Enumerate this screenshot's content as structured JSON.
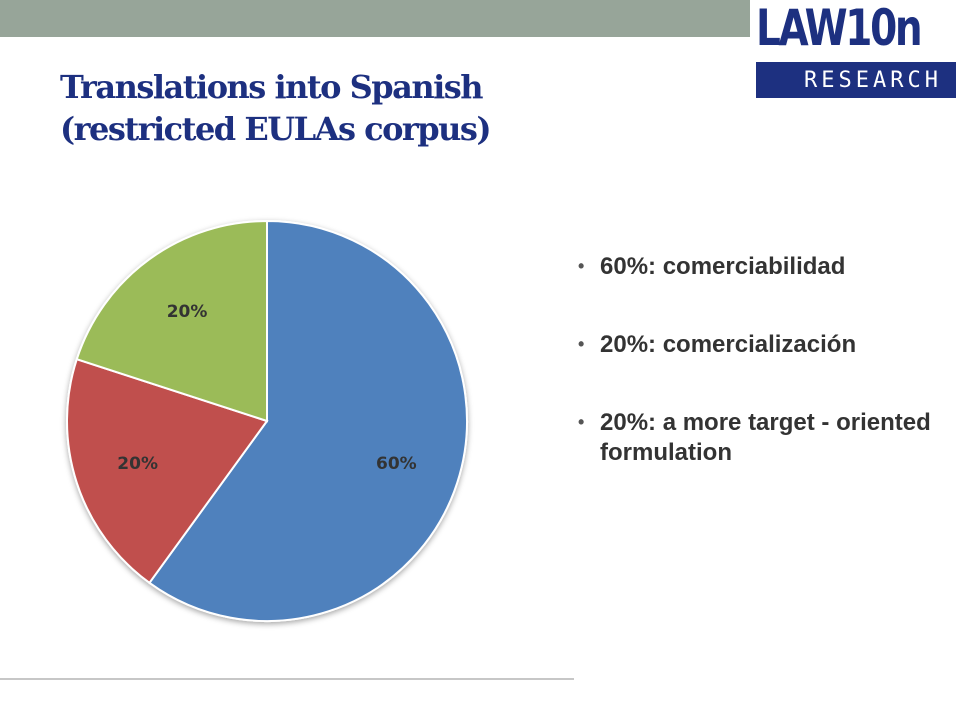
{
  "slide": {
    "title_line1": "Translations into Spanish",
    "title_line2": "(restricted EULAs corpus)"
  },
  "logo": {
    "word": "LAW10n",
    "sub": "RESEARCH",
    "color": "#1d3080"
  },
  "top_bar_color": "#97a599",
  "chart_data": {
    "type": "pie",
    "start_angle": "12 o'clock, clockwise",
    "slices": [
      {
        "label": "60%",
        "value": 60,
        "color": "#4f81bd"
      },
      {
        "label": "20%",
        "value": 20,
        "color": "#c0504d"
      },
      {
        "label": "20%",
        "value": 20,
        "color": "#9bbb59"
      }
    ]
  },
  "bullets": [
    {
      "text": "60%: comerciabilidad"
    },
    {
      "text": "20%: comercialización"
    },
    {
      "text": "20%: a more target - oriented formulation"
    }
  ],
  "bullet_glyph": "•"
}
